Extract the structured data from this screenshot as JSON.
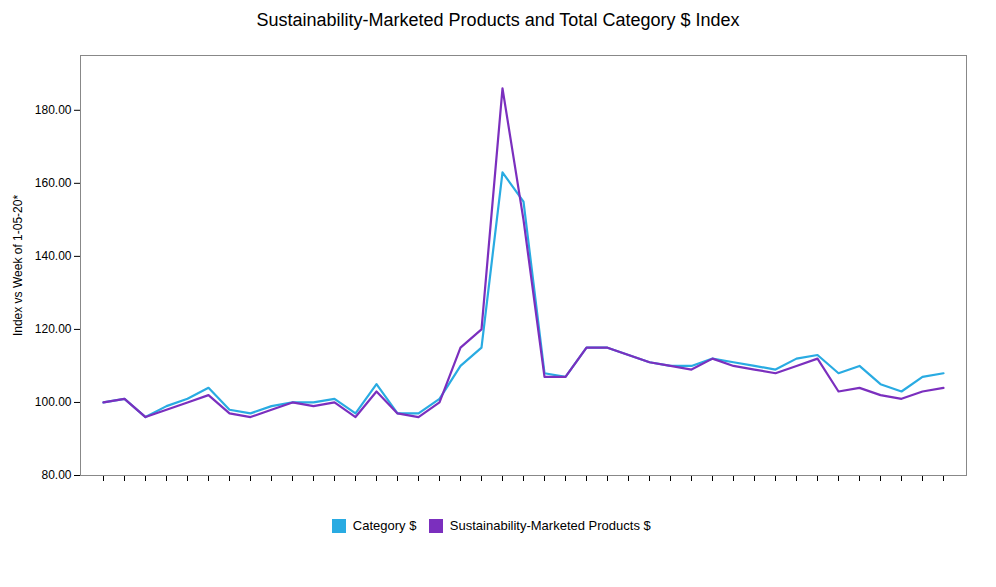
{
  "chart_data": {
    "type": "line",
    "title": "Sustainability-Marketed Products and Total Category $ Index",
    "ylabel": "Index vs Week of 1-05-20*",
    "categories": [
      null,
      null,
      null,
      null,
      null,
      null,
      null,
      null,
      null,
      null,
      null,
      null,
      null,
      null,
      null,
      null,
      null,
      null,
      null,
      null,
      null,
      null,
      null,
      null,
      null,
      null,
      null,
      null,
      null,
      null,
      null,
      null,
      null,
      null,
      null,
      null,
      null,
      null,
      null,
      null,
      null
    ],
    "series": [
      {
        "name": "Category $",
        "color": "#29ABE2",
        "values": [
          100,
          101,
          96,
          99,
          101,
          104,
          98,
          97,
          99,
          100,
          100,
          101,
          97,
          105,
          97,
          97,
          101,
          110,
          115,
          163,
          155,
          108,
          107,
          115,
          115,
          113,
          111,
          110,
          110,
          112,
          111,
          110,
          109,
          112,
          113,
          108,
          110,
          105,
          103,
          107,
          108
        ]
      },
      {
        "name": "Sustainability-Marketed Products $",
        "color": "#7B2FBE",
        "values": [
          100,
          101,
          96,
          98,
          100,
          102,
          97,
          96,
          98,
          100,
          99,
          100,
          96,
          103,
          97,
          96,
          100,
          115,
          120,
          186,
          150,
          107,
          107,
          115,
          115,
          113,
          111,
          110,
          109,
          112,
          110,
          109,
          108,
          110,
          112,
          103,
          104,
          102,
          101,
          103,
          104
        ]
      }
    ],
    "ylim": [
      80,
      195
    ],
    "yticks": [
      {
        "value": 80,
        "label": "80.00"
      },
      {
        "value": 100,
        "label": "100.00"
      },
      {
        "value": 120,
        "label": "120.00"
      },
      {
        "value": 140,
        "label": "140.00"
      },
      {
        "value": 160,
        "label": "160.00"
      },
      {
        "value": 180,
        "label": "180.00"
      }
    ],
    "grid": false,
    "legend": "bottom",
    "tick_labels": "y"
  }
}
